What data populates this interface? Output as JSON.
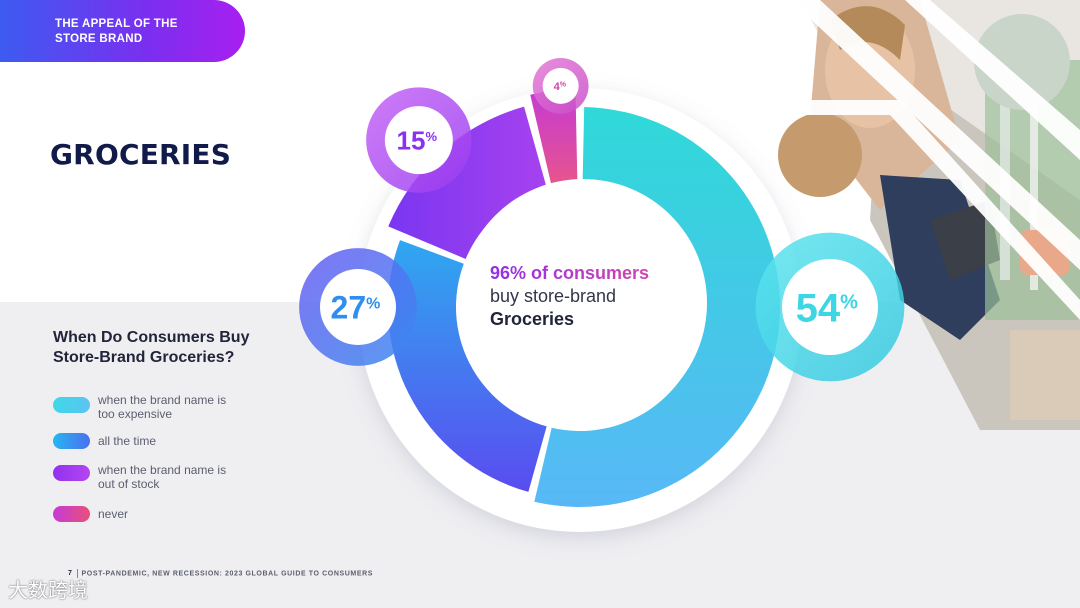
{
  "header": {
    "label_line1": "THE APPEAL OF THE",
    "label_line2": "STORE BRAND"
  },
  "page_title": "GROCERIES",
  "legend": {
    "title_line1": "When Do Consumers Buy",
    "title_line2": "Store-Brand Groceries?",
    "items": [
      {
        "line1": "when the brand name is",
        "line2": "too expensive",
        "color_from": "#3fd8e6",
        "color_to": "#5cc3f4"
      },
      {
        "line1": "all the time",
        "line2": "",
        "color_from": "#27b6f0",
        "color_to": "#4b6ff0"
      },
      {
        "line1": "when the brand name is",
        "line2": "out of stock",
        "color_from": "#9430f0",
        "color_to": "#b246f0"
      },
      {
        "line1": "never",
        "line2": "",
        "color_from": "#c63ad8",
        "color_to": "#e8507a"
      }
    ]
  },
  "center": {
    "line1": "96% of consumers",
    "line2": "buy store-brand",
    "line3": "Groceries"
  },
  "footer": {
    "page": "7",
    "text": "POST-PANDEMIC, NEW RECESSION: 2023 GLOBAL GUIDE TO CONSUMERS"
  },
  "watermark": "大数跨境",
  "chart_data": {
    "type": "pie",
    "title": "When Do Consumers Buy Store-Brand Groceries?",
    "categories": [
      "when the brand name is too expensive",
      "all the time",
      "when the brand name is out of stock",
      "never"
    ],
    "values": [
      54,
      27,
      15,
      4
    ],
    "value_labels": [
      "54",
      "27",
      "15",
      "4"
    ],
    "unit": "%",
    "colors": [
      "#3cd6e4",
      "#2f8ef0",
      "#8b2ff0",
      "#d63fa8"
    ]
  }
}
